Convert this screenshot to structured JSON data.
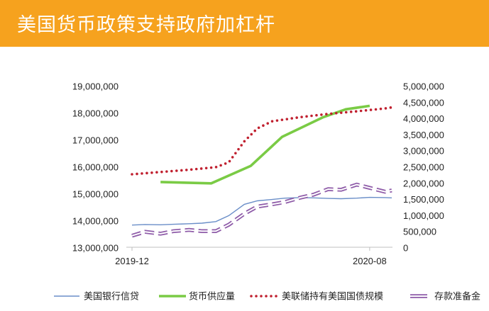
{
  "header": {
    "title": "美国货币政策支持政府加杠杆",
    "bg": "#F6A21E"
  },
  "chart_data": {
    "type": "line",
    "title": "",
    "x_tick_labels": [
      "2019-12",
      "2020-08"
    ],
    "months": [
      "2019-12",
      "2020-01",
      "2020-02",
      "2020-03",
      "2020-04",
      "2020-05",
      "2020-06",
      "2020-07",
      "2020-08",
      "2020-09"
    ],
    "y_left": {
      "min": 13000000,
      "max": 19000000,
      "step": 1000000,
      "ticks": [
        "13,000,000",
        "14,000,000",
        "15,000,000",
        "16,000,000",
        "17,000,000",
        "18,000,000",
        "19,000,000"
      ]
    },
    "y_right": {
      "min": 0,
      "max": 5000000,
      "step": 500000,
      "ticks": [
        "0",
        "500,000",
        "1,000,000",
        "1,500,000",
        "2,000,000",
        "2,500,000",
        "3,000,000",
        "3,500,000",
        "4,000,000",
        "4,500,000",
        "5,000,000"
      ]
    },
    "series": [
      {
        "name": "美国银行信贷",
        "axis": "left",
        "color": "#6A8EC8",
        "style": "thin",
        "x": [
          "2019-12-01",
          "2019-12-15",
          "2020-01-01",
          "2020-01-15",
          "2020-02-01",
          "2020-02-15",
          "2020-03-01",
          "2020-03-15",
          "2020-04-01",
          "2020-04-15",
          "2020-05-01",
          "2020-05-15",
          "2020-06-01",
          "2020-06-15",
          "2020-07-01",
          "2020-07-15",
          "2020-08-01",
          "2020-08-15",
          "2020-09-01",
          "2020-09-08"
        ],
        "values": [
          13850000,
          13870000,
          13860000,
          13880000,
          13900000,
          13920000,
          13980000,
          14200000,
          14620000,
          14750000,
          14800000,
          14850000,
          14870000,
          14860000,
          14840000,
          14830000,
          14850000,
          14880000,
          14870000,
          14860000
        ]
      },
      {
        "name": "货币供应量",
        "axis": "left",
        "color": "#7ACB45",
        "style": "thick",
        "x": [
          "2020-01-01",
          "2020-02-25",
          "2020-04-08",
          "2020-05-12",
          "2020-06-25",
          "2020-07-20",
          "2020-08-15"
        ],
        "values": [
          15450000,
          15400000,
          16050000,
          17130000,
          17850000,
          18150000,
          18280000
        ]
      },
      {
        "name": "美联储持有美国国债规模",
        "axis": "right",
        "color": "#C0202F",
        "style": "dotted",
        "x": [
          "2019-12-01",
          "2020-01-01",
          "2020-02-01",
          "2020-03-01",
          "2020-03-15",
          "2020-04-01",
          "2020-04-15",
          "2020-05-01",
          "2020-06-01",
          "2020-07-01",
          "2020-08-01",
          "2020-09-01",
          "2020-09-08"
        ],
        "values": [
          2280000,
          2350000,
          2420000,
          2500000,
          2650000,
          3300000,
          3700000,
          3920000,
          4050000,
          4150000,
          4230000,
          4320000,
          4350000
        ]
      },
      {
        "name": "存款准备金",
        "axis": "right",
        "color": "#8E5BA8",
        "style": "dashed-double",
        "x": [
          "2019-12-01",
          "2019-12-15",
          "2020-01-01",
          "2020-01-15",
          "2020-02-01",
          "2020-02-15",
          "2020-03-01",
          "2020-03-15",
          "2020-04-01",
          "2020-04-15",
          "2020-05-01",
          "2020-05-15",
          "2020-06-01",
          "2020-06-15",
          "2020-07-01",
          "2020-07-15",
          "2020-08-01",
          "2020-08-15",
          "2020-09-01",
          "2020-09-08"
        ],
        "values": [
          380000,
          500000,
          440000,
          520000,
          560000,
          520000,
          520000,
          720000,
          1060000,
          1280000,
          1350000,
          1420000,
          1560000,
          1650000,
          1820000,
          1800000,
          1960000,
          1860000,
          1740000,
          1780000
        ]
      }
    ],
    "legend_position": "bottom"
  }
}
